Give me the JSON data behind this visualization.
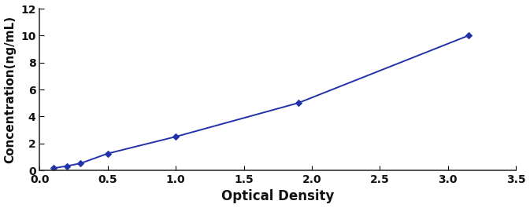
{
  "x": [
    0.1,
    0.2,
    0.3,
    0.5,
    1.0,
    1.9,
    3.15
  ],
  "y": [
    0.16,
    0.32,
    0.52,
    1.25,
    2.5,
    5.0,
    10.0
  ],
  "line_color": "#2233aa",
  "marker_color": "#2233aa",
  "marker": "D",
  "marker_size": 4,
  "linewidth": 1.4,
  "xlabel": "Optical Density",
  "ylabel": "Concentration(ng/mL)",
  "xlim": [
    0.0,
    3.5
  ],
  "ylim": [
    0,
    12
  ],
  "xticks": [
    0.0,
    0.5,
    1.0,
    1.5,
    2.0,
    2.5,
    3.0,
    3.5
  ],
  "yticks": [
    0,
    2,
    4,
    6,
    8,
    10,
    12
  ],
  "xlabel_fontsize": 12,
  "ylabel_fontsize": 11,
  "tick_fontsize": 10,
  "background_color": "#ffffff"
}
